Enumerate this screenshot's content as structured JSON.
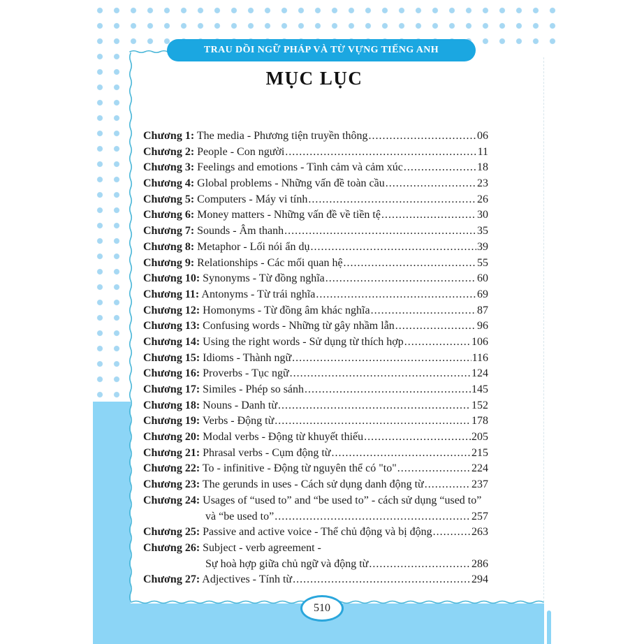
{
  "header": {
    "series_title": "TRAU DỒI NGỮ PHÁP VÀ TỪ VỰNG TIẾNG ANH",
    "page_title": "MỤC LỤC"
  },
  "footer": {
    "page_number": "510"
  },
  "colors": {
    "accent_blue": "#1BA7E1",
    "light_blue": "#8CD5F6",
    "dot_blue": "#A6D8F3",
    "squiggle_blue": "#49B6D8",
    "oval_border_blue": "#2AA6DC"
  },
  "toc": {
    "entries": [
      {
        "label": "Chương 1:",
        "title": "The media - Phương tiện truyền thông",
        "page": "06"
      },
      {
        "label": "Chương 2:",
        "title": "People - Con người",
        "page": "11"
      },
      {
        "label": "Chương 3:",
        "title": "Feelings and emotions - Tình cảm và cảm xúc",
        "page": "18"
      },
      {
        "label": "Chương 4:",
        "title": "Global problems - Những vấn đề toàn cầu",
        "page": "23"
      },
      {
        "label": "Chương 5:",
        "title": "Computers - Máy vi tính",
        "page": "26"
      },
      {
        "label": "Chương 6:",
        "title": "Money matters - Những vấn đề về tiền tệ",
        "page": "30"
      },
      {
        "label": "Chương 7:",
        "title": "Sounds - Âm thanh",
        "page": "35"
      },
      {
        "label": "Chương 8:",
        "title": "Metaphor - Lối nói ẩn dụ",
        "page": "39"
      },
      {
        "label": "Chương 9:",
        "title": "Relationships - Các mối quan hệ",
        "page": "55"
      },
      {
        "label": "Chương 10:",
        "title": "Synonyms - Từ đồng nghĩa",
        "page": "60"
      },
      {
        "label": "Chương 11:",
        "title": "Antonyms - Từ trái nghĩa",
        "page": "69"
      },
      {
        "label": "Chương 12:",
        "title": "Homonyms - Từ đồng âm khác nghĩa",
        "page": "87"
      },
      {
        "label": "Chương 13:",
        "title": "Confusing words - Những từ gây nhầm lẫn",
        "page": "96"
      },
      {
        "label": "Chương 14:",
        "title": "Using the right words - Sử dụng từ thích hợp",
        "page": "106"
      },
      {
        "label": "Chương 15:",
        "title": "Idioms - Thành ngữ",
        "page": "116"
      },
      {
        "label": "Chương 16:",
        "title": "Proverbs - Tục ngữ",
        "page": "124"
      },
      {
        "label": "Chương 17:",
        "title": "Similes - Phép so sánh",
        "page": "145"
      },
      {
        "label": "Chương 18:",
        "title": "Nouns - Danh từ",
        "page": "152"
      },
      {
        "label": "Chương 19:",
        "title": "Verbs - Động từ",
        "page": "178"
      },
      {
        "label": "Chương 20:",
        "title": "Modal verbs - Động từ khuyết thiếu",
        "page": "205"
      },
      {
        "label": "Chương 21:",
        "title": "Phrasal verbs - Cụm động từ",
        "page": "215"
      },
      {
        "label": "Chương 22:",
        "title": "To - infinitive - Động từ nguyên thể có \"to\"",
        "page": "224"
      },
      {
        "label": "Chương 23:",
        "title": "The gerunds in uses - Cách sử dụng danh động từ",
        "page": "237"
      },
      {
        "label": "Chương 24:",
        "title": "Usages of “used to” and “be used to” - cách sử dụng “used to”",
        "title2": "và “be used to”",
        "page": "257"
      },
      {
        "label": "Chương 25:",
        "title": "Passive and active voice - Thể chủ động và bị động",
        "page": "263"
      },
      {
        "label": "Chương 26:",
        "title": "Subject - verb agreement -",
        "title2": "Sự hoà hợp giữa chủ ngữ và động từ",
        "page": "286"
      },
      {
        "label": "Chương 27:",
        "title": "Adjectives - Tính từ",
        "page": "294"
      }
    ]
  }
}
